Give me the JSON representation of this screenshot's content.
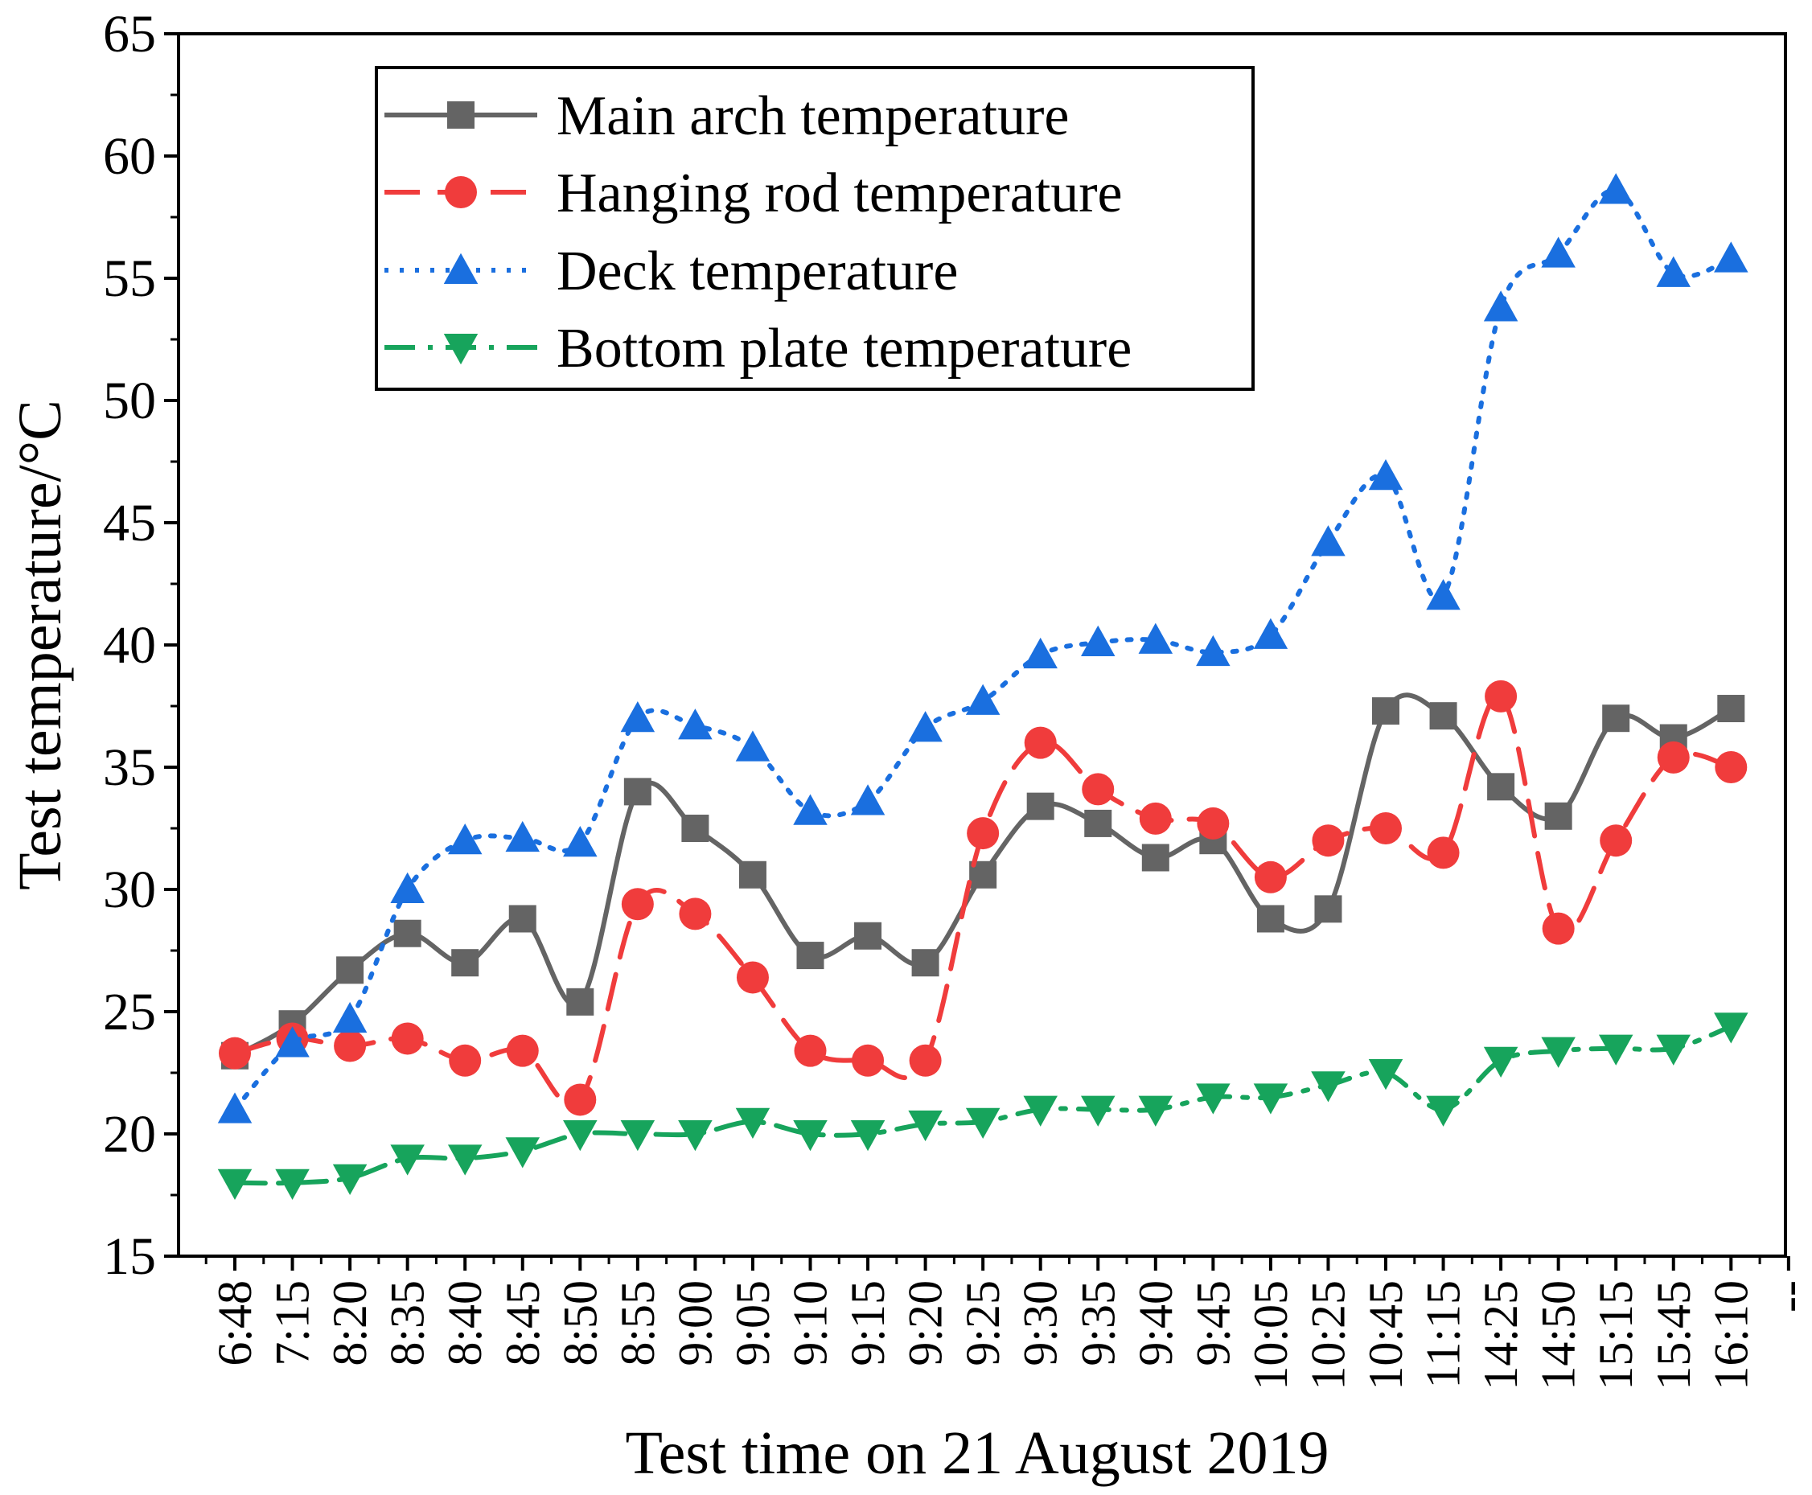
{
  "chart_data": {
    "type": "line",
    "xlabel": "Test time on 21 August  2019",
    "ylabel": "Test temperature/°C",
    "ylim": [
      15,
      65
    ],
    "y_ticks": [
      15,
      20,
      25,
      30,
      35,
      40,
      45,
      50,
      55,
      60,
      65
    ],
    "categories": [
      "6:48",
      "7:15",
      "8:20",
      "8:35",
      "8:40",
      "8:45",
      "8:50",
      "8:55",
      "9:00",
      "9:05",
      "9:10",
      "9:15",
      "9:20",
      "9:25",
      "9:30",
      "9:35",
      "9:40",
      "9:45",
      "10:05",
      "10:25",
      "10:45",
      "11:15",
      "14:25",
      "14:50",
      "15:15",
      "15:45",
      "16:10"
    ],
    "extra_tick_label": "--",
    "legend_position": "top-left",
    "grid": false,
    "series": [
      {
        "name": "Main arch temperature",
        "color": "#646464",
        "marker": "square",
        "line_style": "solid",
        "values": [
          23.2,
          24.5,
          26.7,
          28.2,
          27.0,
          28.8,
          25.4,
          34.0,
          32.5,
          30.6,
          27.3,
          28.1,
          27.0,
          30.6,
          33.4,
          32.7,
          31.3,
          32.0,
          28.8,
          29.2,
          37.3,
          37.1,
          34.2,
          33.0,
          37.0,
          36.2,
          37.4
        ]
      },
      {
        "name": "Hanging rod temperature",
        "color": "#f03c3c",
        "marker": "circle",
        "line_style": "dashed",
        "values": [
          23.3,
          23.9,
          23.6,
          23.9,
          23.0,
          23.4,
          21.4,
          29.4,
          29.0,
          26.4,
          23.4,
          23.0,
          23.0,
          32.3,
          36.0,
          34.1,
          32.9,
          32.7,
          30.5,
          32.0,
          32.5,
          31.5,
          37.9,
          28.4,
          32.0,
          35.4,
          35.0
        ]
      },
      {
        "name": "Deck temperature",
        "color": "#1a6fdf",
        "marker": "triangle-up",
        "line_style": "dotted",
        "values": [
          21.0,
          23.7,
          24.7,
          30.0,
          32.0,
          32.1,
          31.9,
          37.0,
          36.7,
          35.8,
          33.2,
          33.6,
          36.6,
          37.7,
          39.6,
          40.1,
          40.2,
          39.7,
          40.4,
          44.2,
          46.9,
          42.0,
          53.8,
          56.0,
          58.6,
          55.2,
          55.8
        ]
      },
      {
        "name": "Bottom plate temperature",
        "color": "#17a45c",
        "marker": "triangle-down",
        "line_style": "dash-dot",
        "values": [
          18.0,
          18.0,
          18.2,
          19.0,
          19.0,
          19.3,
          20.0,
          20.0,
          20.0,
          20.5,
          20.0,
          20.0,
          20.4,
          20.5,
          21.0,
          21.0,
          21.0,
          21.5,
          21.5,
          22.0,
          22.5,
          21.0,
          23.0,
          23.4,
          23.5,
          23.5,
          24.4
        ]
      }
    ]
  }
}
